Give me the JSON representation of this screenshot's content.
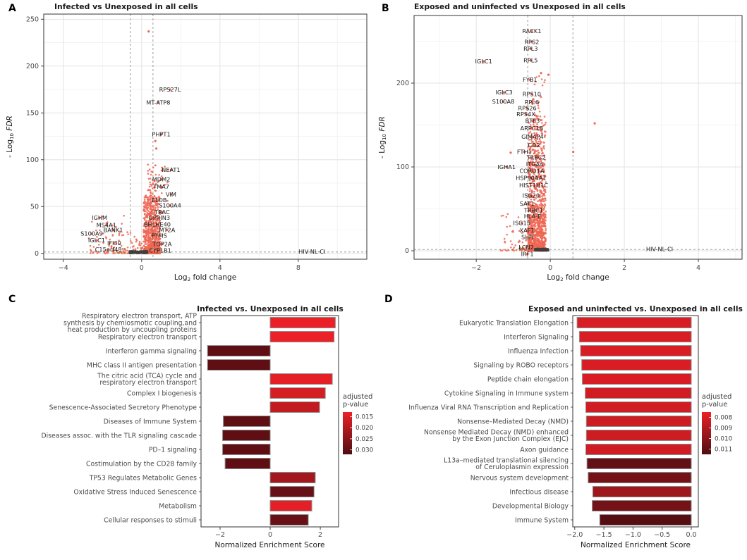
{
  "figure": {
    "panel_letters": [
      "A",
      "B",
      "C",
      "D"
    ],
    "colors": {
      "point": "#ED6653",
      "point_dark": "#3F3F3F",
      "point_orange": "#C06A36",
      "bar_bright": "#EC2127",
      "bar_dark": "#4E0D12",
      "grid_major": "#E3E3E3",
      "grid_minor": "#F1F1F1",
      "panel_border": "#333333",
      "dashed": "#8F8F8F",
      "text": "#1A1A1A",
      "muted": "#4A4A4A",
      "bar_stroke": "#8F8F8F"
    }
  },
  "chart_data": [
    {
      "id": "A",
      "type": "scatter",
      "subtype": "volcano",
      "title": "Infected vs Unexposed in all cells",
      "xlabel": {
        "pre": "Log",
        "sub": "2",
        "post": " fold change",
        "italic_post": false
      },
      "ylabel": {
        "pre": "- Log",
        "sub": "10",
        "post": " FDR",
        "italic_post": true
      },
      "xlim": [
        -5.0,
        11.5
      ],
      "ylim": [
        -6.2,
        255.5
      ],
      "xticks": [
        {
          "v": -4,
          "t": "−4"
        },
        {
          "v": 0,
          "t": "0"
        },
        {
          "v": 4,
          "t": "4"
        },
        {
          "v": 8,
          "t": "8"
        }
      ],
      "yticks": [
        {
          "v": 0,
          "t": "0"
        },
        {
          "v": 50,
          "t": "50"
        },
        {
          "v": 100,
          "t": "100"
        },
        {
          "v": 150,
          "t": "150"
        },
        {
          "v": 200,
          "t": "200"
        },
        {
          "v": 250,
          "t": "250"
        }
      ],
      "xminor": [
        -2,
        2,
        6,
        10
      ],
      "yminor": [
        25,
        75,
        125,
        175,
        225
      ],
      "vlines": [
        -0.58,
        0.58
      ],
      "hline": 1.5,
      "labeled_genes": [
        {
          "g": "RPS27L",
          "x": 1.45,
          "y": 175
        },
        {
          "g": "MT-ATP8",
          "x": 0.85,
          "y": 161
        },
        {
          "g": "PHPT1",
          "x": 1.0,
          "y": 127
        },
        {
          "g": "NEAT1",
          "x": 1.5,
          "y": 89
        },
        {
          "g": "MDM2",
          "x": 1.0,
          "y": 79
        },
        {
          "g": "TMA7",
          "x": 1.0,
          "y": 71
        },
        {
          "g": "VIM",
          "x": 1.5,
          "y": 63
        },
        {
          "g": "ELOB",
          "x": 0.9,
          "y": 57
        },
        {
          "g": "S100A4",
          "x": 1.45,
          "y": 51
        },
        {
          "g": "TRAC",
          "x": 1.05,
          "y": 44
        },
        {
          "g": "GPRIN3",
          "x": 0.9,
          "y": 38
        },
        {
          "g": "BHLHE40",
          "x": 0.8,
          "y": 31
        },
        {
          "g": "MT2A",
          "x": 1.3,
          "y": 25
        },
        {
          "g": "PTMS",
          "x": 0.9,
          "y": 19
        },
        {
          "g": "TOP2A",
          "x": 1.05,
          "y": 10
        },
        {
          "g": "CYP1B1",
          "x": 0.95,
          "y": 3
        },
        {
          "g": "IGHM",
          "x": -2.15,
          "y": 38
        },
        {
          "g": "MS4A1",
          "x": -1.8,
          "y": 30
        },
        {
          "g": "BANK1",
          "x": -1.45,
          "y": 25
        },
        {
          "g": "S100A9",
          "x": -2.55,
          "y": 21
        },
        {
          "g": "IGLC1",
          "x": -2.3,
          "y": 14
        },
        {
          "g": "IFI30",
          "x": -1.4,
          "y": 11
        },
        {
          "g": "C15orf48",
          "x": -1.7,
          "y": 4
        },
        {
          "g": "HIV-NL-CI",
          "x": 8.7,
          "y": 2,
          "dot": false
        }
      ],
      "extra_points": [
        [
          0.36,
          237
        ],
        [
          0.7,
          120
        ],
        [
          0.75,
          112
        ]
      ],
      "point_clusters": [
        {
          "n": 700,
          "x": [
            0.1,
            0.95
          ],
          "y": [
            0,
            62
          ],
          "pow": 2.2,
          "color": "point"
        },
        {
          "n": 130,
          "x": [
            0.3,
            0.75
          ],
          "y": [
            0,
            95
          ],
          "pow": 1.6,
          "color": "point"
        },
        {
          "n": 25,
          "x": [
            0.3,
            1.35
          ],
          "y": [
            55,
            95
          ],
          "pow": 1.0,
          "color": "point"
        },
        {
          "n": 70,
          "x": [
            -2.7,
            -0.55
          ],
          "y": [
            0,
            42
          ],
          "pow": 2.6,
          "color": "point"
        },
        {
          "n": 20,
          "x": [
            -0.5,
            0.1
          ],
          "y": [
            2,
            18
          ],
          "pow": 1.5,
          "color": "point"
        },
        {
          "n": 30,
          "x": [
            -1.6,
            0.9
          ],
          "y": [
            0,
            6
          ],
          "pow": 1.2,
          "color": "point_orange"
        },
        {
          "n": 240,
          "x": [
            -0.62,
            0.3
          ],
          "y": [
            0,
            2.6
          ],
          "pow": 1.0,
          "color": "point_dark"
        }
      ],
      "seed": 11
    },
    {
      "id": "B",
      "type": "scatter",
      "subtype": "volcano",
      "title": "Exposed and uninfected vs Unexposed in all cells",
      "xlabel": {
        "pre": "Log",
        "sub": "2",
        "post": " fold change",
        "italic_post": false
      },
      "ylabel": {
        "pre": "- Log",
        "sub": "10",
        "post": " FDR",
        "italic_post": true
      },
      "xlim": [
        -3.68,
        5.18
      ],
      "ylim": [
        -10.1,
        280.7
      ],
      "xticks": [
        {
          "v": -2,
          "t": "−2"
        },
        {
          "v": 0,
          "t": "0"
        },
        {
          "v": 2,
          "t": "2"
        },
        {
          "v": 4,
          "t": "4"
        }
      ],
      "yticks": [
        {
          "v": 0,
          "t": "0"
        },
        {
          "v": 100,
          "t": "100"
        },
        {
          "v": 200,
          "t": "200"
        }
      ],
      "xminor": [
        -3,
        -1,
        1,
        3,
        5
      ],
      "yminor": [
        50,
        150,
        250
      ],
      "vlines": [
        -0.61,
        0.61
      ],
      "hline": 1.5,
      "labeled_genes": [
        {
          "g": "RACK1",
          "x": -0.5,
          "y": 262
        },
        {
          "g": "RPS2",
          "x": -0.5,
          "y": 249
        },
        {
          "g": "RPL3",
          "x": -0.53,
          "y": 241
        },
        {
          "g": "IGLC1",
          "x": -1.8,
          "y": 226
        },
        {
          "g": "RPL5",
          "x": -0.53,
          "y": 227
        },
        {
          "g": "FYB1",
          "x": -0.55,
          "y": 204
        },
        {
          "g": "IGLC3",
          "x": -1.25,
          "y": 189
        },
        {
          "g": "RPS10",
          "x": -0.5,
          "y": 187
        },
        {
          "g": "S100A8",
          "x": -1.27,
          "y": 178
        },
        {
          "g": "RPL6",
          "x": -0.5,
          "y": 177
        },
        {
          "g": "RPS26",
          "x": -0.62,
          "y": 170
        },
        {
          "g": "RPS4X",
          "x": -0.66,
          "y": 163
        },
        {
          "g": "BTF3",
          "x": -0.48,
          "y": 155
        },
        {
          "g": "ARPC1B",
          "x": -0.5,
          "y": 146
        },
        {
          "g": "GIMAP4",
          "x": -0.48,
          "y": 136
        },
        {
          "g": "CD2",
          "x": -0.44,
          "y": 126
        },
        {
          "g": "FTH1",
          "x": -0.7,
          "y": 118
        },
        {
          "g": "TRBC2",
          "x": -0.38,
          "y": 111
        },
        {
          "g": "IGHA1",
          "x": -1.18,
          "y": 100
        },
        {
          "g": "ITGA4",
          "x": -0.42,
          "y": 103
        },
        {
          "g": "CORO1A",
          "x": -0.5,
          "y": 95
        },
        {
          "g": "HSP90AA1",
          "x": -0.52,
          "y": 87
        },
        {
          "g": "HIST1H1C",
          "x": -0.45,
          "y": 78
        },
        {
          "g": "ISG20",
          "x": -0.52,
          "y": 66
        },
        {
          "g": "SAT1",
          "x": -0.63,
          "y": 56
        },
        {
          "g": "TRBC1",
          "x": -0.45,
          "y": 48
        },
        {
          "g": "HLA-E",
          "x": -0.48,
          "y": 41
        },
        {
          "g": "ISG15",
          "x": -0.77,
          "y": 33
        },
        {
          "g": "XAF1",
          "x": -0.63,
          "y": 24
        },
        {
          "g": "SLPI",
          "x": -0.62,
          "y": 16
        },
        {
          "g": "LCN2",
          "x": -0.65,
          "y": 4
        },
        {
          "g": "IRF1",
          "x": -0.62,
          "y": -4
        },
        {
          "g": "HIV-NL-CI",
          "x": 2.95,
          "y": 2,
          "dot": false
        }
      ],
      "extra_points": [
        [
          -0.25,
          212
        ],
        [
          -0.05,
          210
        ],
        [
          1.2,
          152
        ],
        [
          0.62,
          118
        ],
        [
          -1.07,
          117
        ]
      ],
      "point_clusters": [
        {
          "n": 950,
          "x": [
            -0.6,
            -0.12
          ],
          "y": [
            0,
            162
          ],
          "pow": 2.4,
          "color": "point"
        },
        {
          "n": 250,
          "x": [
            -0.55,
            -0.15
          ],
          "y": [
            0,
            55
          ],
          "pow": 1.4,
          "color": "point"
        },
        {
          "n": 22,
          "x": [
            -0.5,
            -0.12
          ],
          "y": [
            160,
            212
          ],
          "pow": 1.0,
          "color": "point"
        },
        {
          "n": 45,
          "x": [
            -1.35,
            -0.58
          ],
          "y": [
            0,
            45
          ],
          "pow": 2.4,
          "color": "point"
        },
        {
          "n": 10,
          "x": [
            -1.05,
            -0.58
          ],
          "y": [
            0,
            4
          ],
          "pow": 1.0,
          "color": "point_orange"
        },
        {
          "n": 190,
          "x": [
            -0.42,
            -0.05
          ],
          "y": [
            0,
            2.6
          ],
          "pow": 1.0,
          "color": "point_dark"
        }
      ],
      "seed": 22
    },
    {
      "id": "C",
      "type": "bar",
      "orientation": "horizontal",
      "title": "Infected vs. Unexposed in all cells",
      "xlabel": "Normalized Enrichment Score",
      "xlim": [
        -2.76,
        2.73
      ],
      "xticks": [
        {
          "v": -2,
          "t": "−2"
        },
        {
          "v": 0,
          "t": "0"
        },
        {
          "v": 2,
          "t": "2"
        }
      ],
      "categories": [
        "Respiratory electron transport, ATP\nsynthesis by chemiosmotic coupling,and\nheat production by uncoupling proteins",
        "Respiratory electron transport",
        "Interferon gamma signaling",
        "MHC class II antigen presentation",
        "The citric acid (TCA) cycle and\nrespiratory electron transport",
        "Complex I biogenesis",
        "Senescence-Associated Secretory Phenotype",
        "Diseases of Immune System",
        "Diseases assoc. with the TLR signaling cascade",
        "PD–1 signaling",
        "Costimulation by the CD28 family",
        "TP53 Regulates Metabolic Genes",
        "Oxidative Stress Induced Senescence",
        "Metabolism",
        "Cellular responses to stimuli"
      ],
      "values": [
        2.6,
        2.55,
        -2.5,
        -2.5,
        2.48,
        2.2,
        1.97,
        -1.87,
        -1.9,
        -1.9,
        -1.8,
        1.8,
        1.75,
        1.66,
        1.52
      ],
      "p_values": [
        0.013,
        0.013,
        0.03,
        0.03,
        0.014,
        0.016,
        0.018,
        0.03,
        0.03,
        0.03,
        0.03,
        0.022,
        0.029,
        0.014,
        0.029
      ],
      "legend": {
        "title_lines": [
          "adjusted",
          "p-value"
        ],
        "ticks": [
          {
            "v": 0.015,
            "t": "0.015"
          },
          {
            "v": 0.02,
            "t": "0.020"
          },
          {
            "v": 0.025,
            "t": "0.025"
          },
          {
            "v": 0.03,
            "t": "0.030"
          }
        ],
        "lo": 0.013,
        "hi": 0.032
      }
    },
    {
      "id": "D",
      "type": "bar",
      "orientation": "horizontal",
      "title": "Exposed and uninfected vs. Unexposed in all cells",
      "xlabel": "Normalized Enrichment Score",
      "xlim": [
        -2.034,
        0.121
      ],
      "xticks": [
        {
          "v": -2,
          "t": "−2.0"
        },
        {
          "v": -1.5,
          "t": "−1.5"
        },
        {
          "v": -1,
          "t": "−1.0"
        },
        {
          "v": -0.5,
          "t": "−0.5"
        },
        {
          "v": 0,
          "t": "0.0"
        }
      ],
      "categories": [
        "Eukaryotic Translation Elongation",
        "Interferon Signaling",
        "Influenza Infection",
        "Signaling by ROBO receptors",
        "Peptide chain elongation",
        "Cytokine Signaling in Immune system",
        "Influenza Viral RNA Transcription and Replication",
        "Nonsense–Mediated Decay (NMD)",
        "Nonsense Mediated Decay (NMD) enhanced\nby the Exon Junction Complex (EJC)",
        "Axon guidance",
        "L13a–mediated translational silencing\nof Ceruloplasmin expression",
        "Nervous system development",
        "Infectious disease",
        "Developmental Biology",
        "Immune System"
      ],
      "values": [
        -1.96,
        -1.92,
        -1.9,
        -1.88,
        -1.87,
        -1.82,
        -1.81,
        -1.8,
        -1.8,
        -1.81,
        -1.79,
        -1.77,
        -1.69,
        -1.7,
        -1.57
      ],
      "p_values": [
        0.008,
        0.008,
        0.008,
        0.008,
        0.008,
        0.0082,
        0.0082,
        0.0083,
        0.0083,
        0.0082,
        0.011,
        0.0105,
        0.0095,
        0.0105,
        0.0113
      ],
      "legend": {
        "title_lines": [
          "adjusted",
          "p-value"
        ],
        "ticks": [
          {
            "v": 0.008,
            "t": "0.008"
          },
          {
            "v": 0.009,
            "t": "0.009"
          },
          {
            "v": 0.01,
            "t": "0.010"
          },
          {
            "v": 0.011,
            "t": "0.011"
          }
        ],
        "lo": 0.0075,
        "hi": 0.0115
      }
    }
  ]
}
